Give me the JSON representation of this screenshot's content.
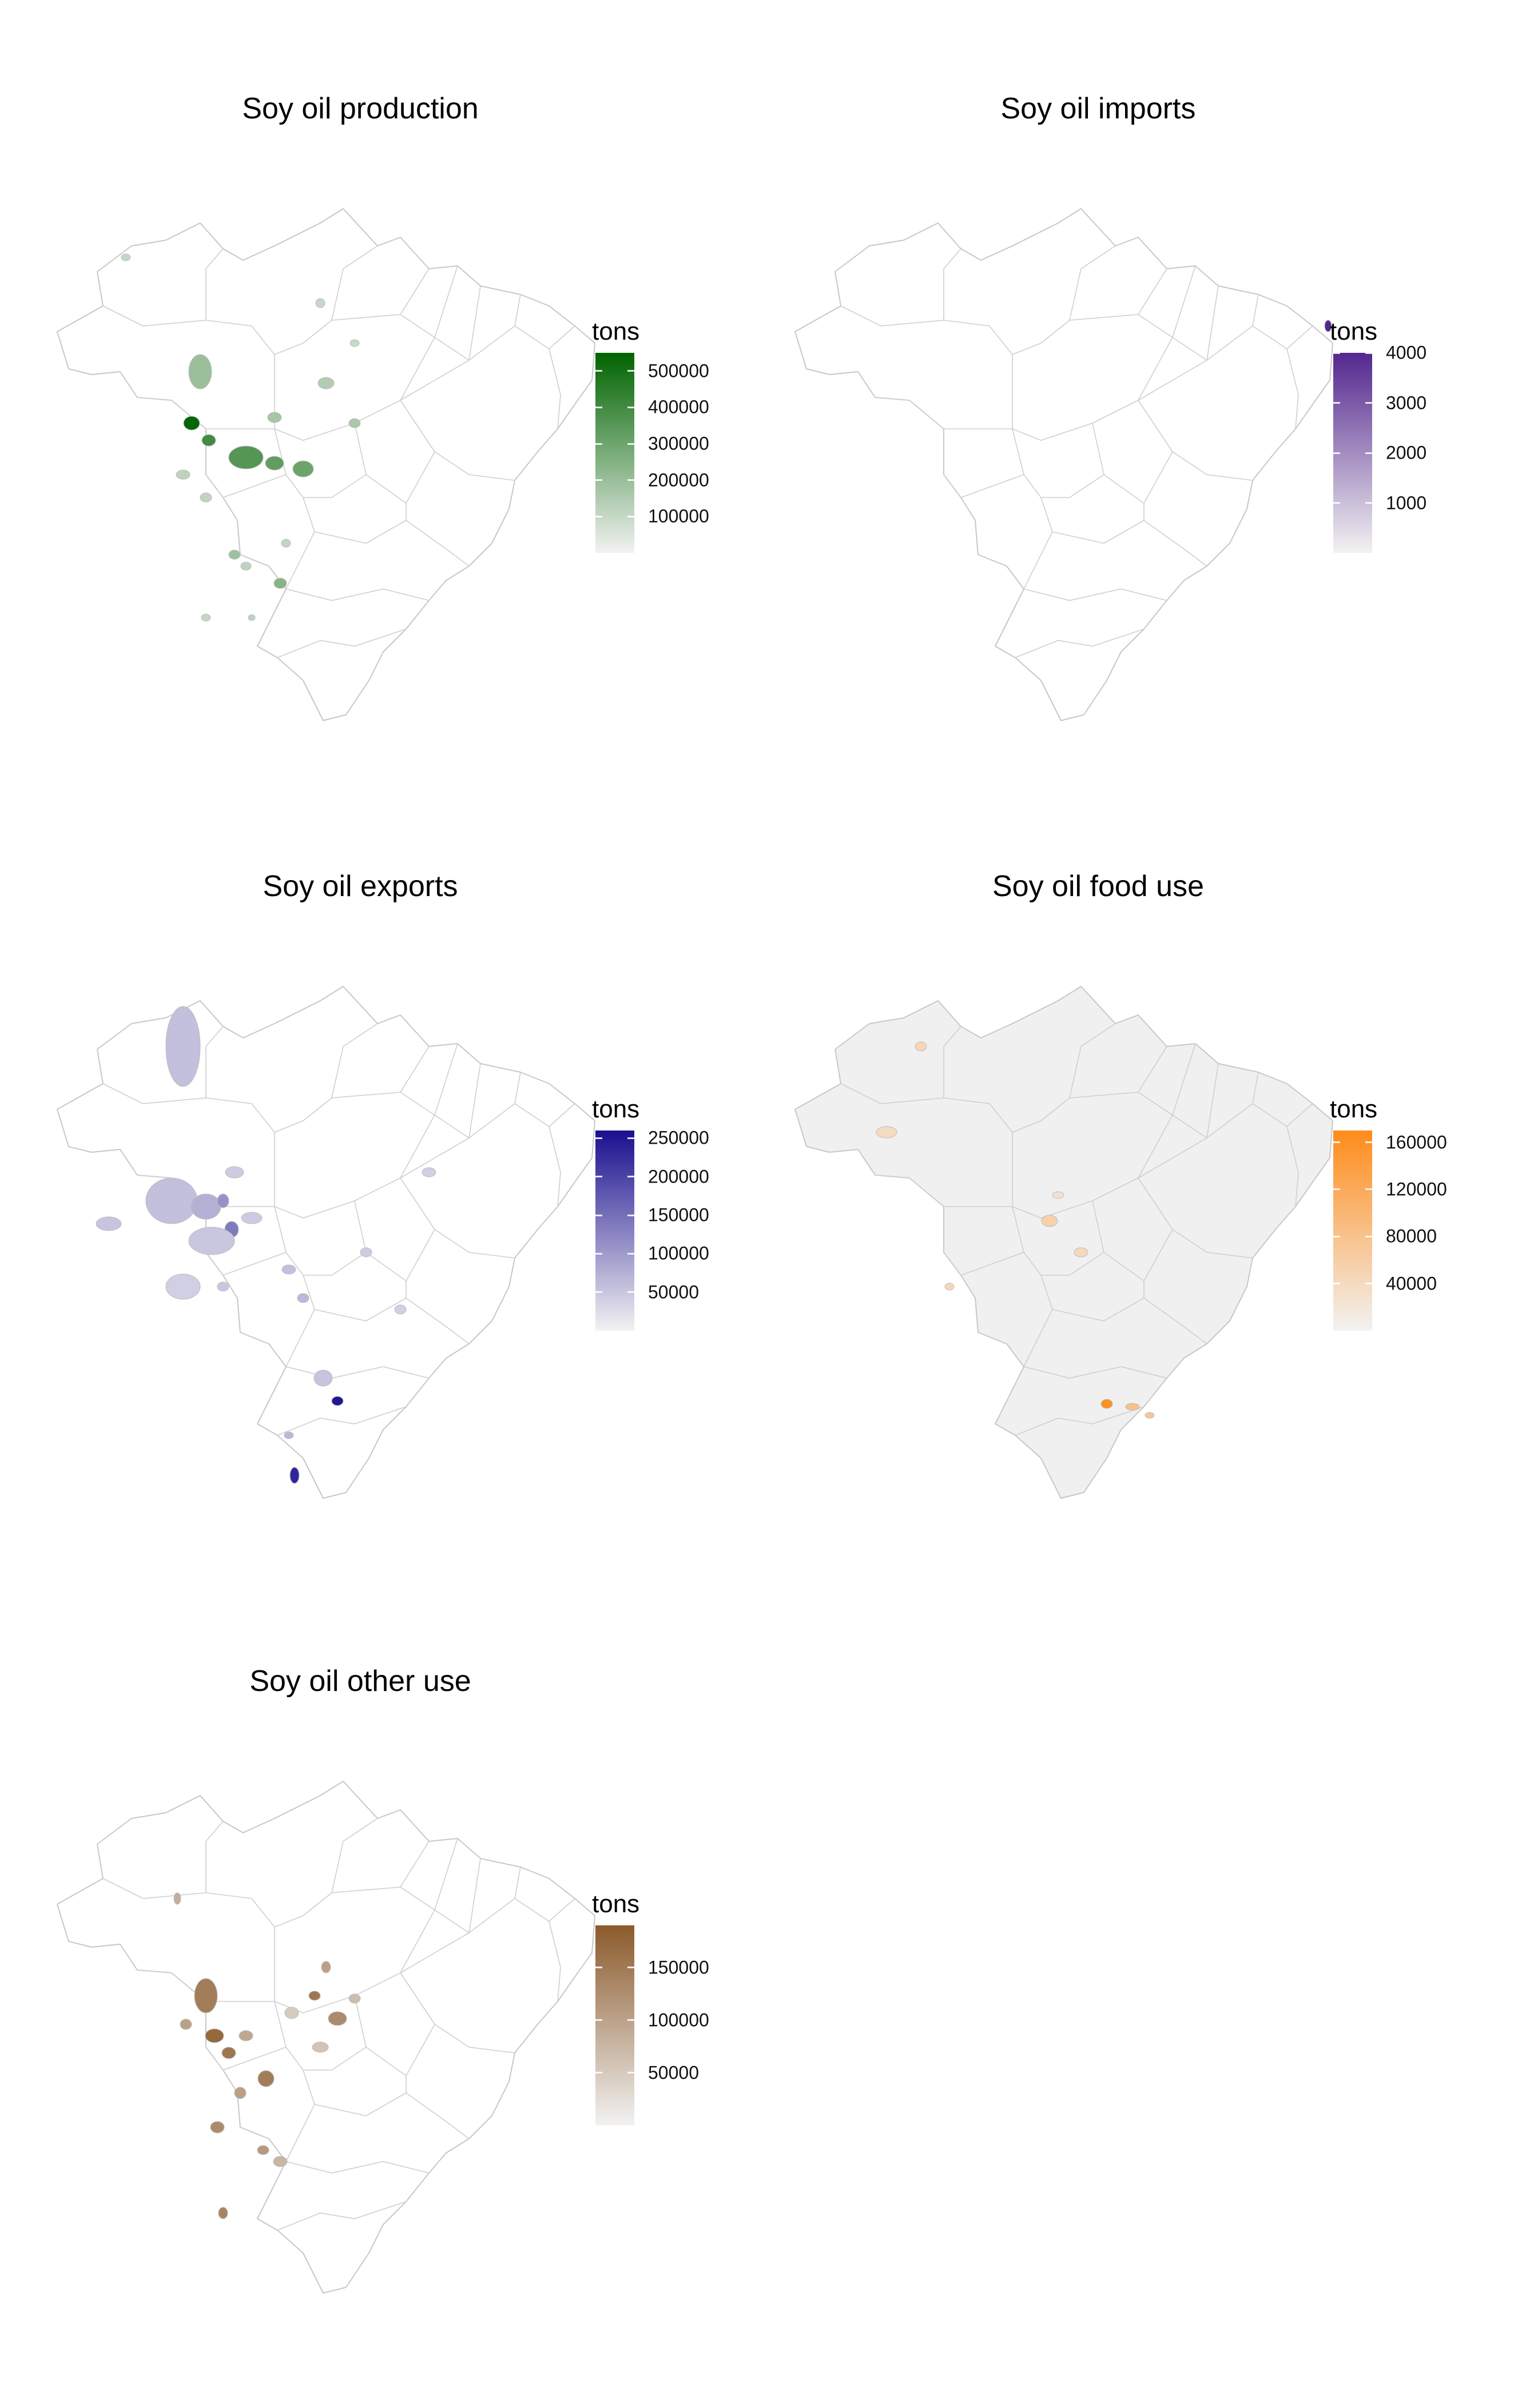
{
  "panels": [
    {
      "id": "production",
      "title": "Soy oil  production",
      "legend_title": "tons",
      "ticks": [
        500000,
        400000,
        300000,
        200000,
        100000
      ],
      "tick_labels": [
        "500000",
        "400000",
        "300000",
        "200000",
        "100000"
      ],
      "max": 550000,
      "color_low": "#f2f2f2",
      "color_high": "#006400",
      "map_background": "#ffffff"
    },
    {
      "id": "imports",
      "title": "Soy oil imports",
      "legend_title": "tons",
      "ticks": [
        4000,
        3000,
        2000,
        1000
      ],
      "tick_labels": [
        "4000",
        "3000",
        "2000",
        "1000"
      ],
      "max": 4000,
      "color_low": "#f2f2f2",
      "color_high": "#54278f",
      "map_background": "#ffffff"
    },
    {
      "id": "exports",
      "title": "Soy oil exports",
      "legend_title": "tons",
      "ticks": [
        250000,
        200000,
        150000,
        100000,
        50000
      ],
      "tick_labels": [
        "250000",
        "200000",
        "150000",
        "100000",
        "50000"
      ],
      "max": 260000,
      "color_low": "#f2f2f2",
      "color_high": "#1a0f8f",
      "map_background": "#ffffff"
    },
    {
      "id": "food_use",
      "title": "Soy oil food use",
      "legend_title": "tons",
      "ticks": [
        160000,
        120000,
        80000,
        40000
      ],
      "tick_labels": [
        "160000",
        "120000",
        "80000",
        "40000"
      ],
      "max": 170000,
      "color_low": "#f2f2f2",
      "color_high": "#ff8c1a",
      "map_background": "#f0f0f0"
    },
    {
      "id": "other_use",
      "title": "Soy oil other use",
      "legend_title": "tons",
      "ticks": [
        150000,
        100000,
        50000
      ],
      "tick_labels": [
        "150000",
        "100000",
        "50000"
      ],
      "max": 190000,
      "color_low": "#f2f2f2",
      "color_high": "#8b5a2b",
      "map_background": "#ffffff"
    }
  ]
}
